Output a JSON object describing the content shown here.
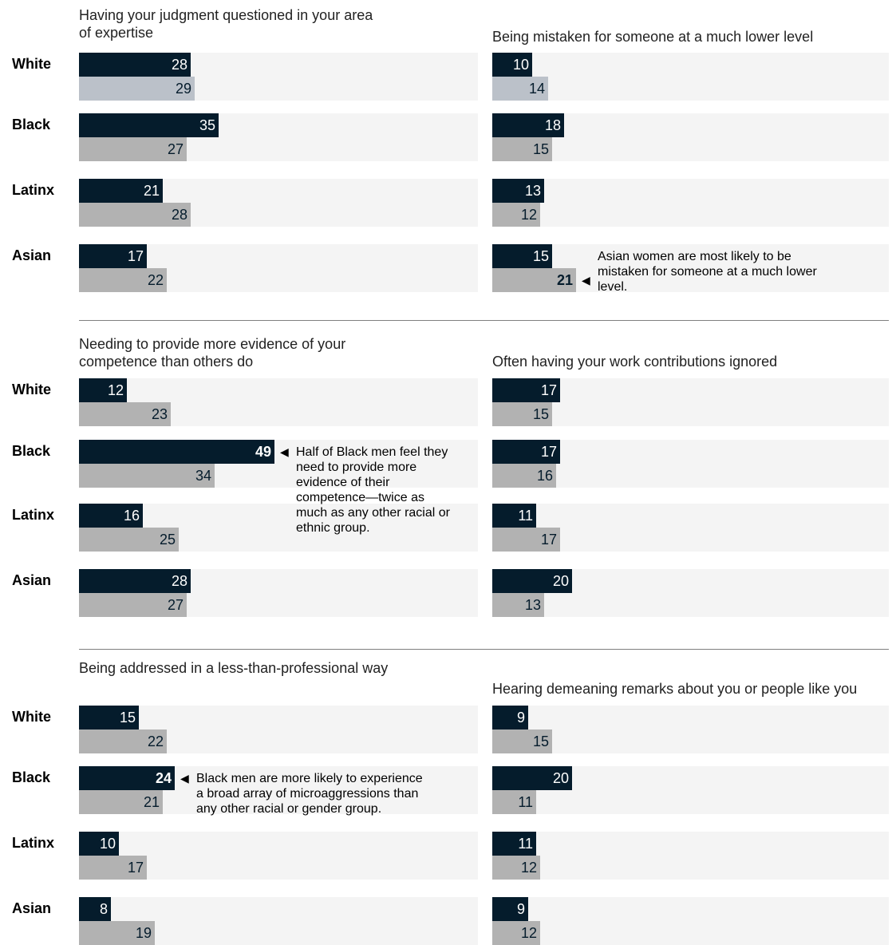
{
  "colors": {
    "men": "#051c2c",
    "women": "#b2b2b2",
    "track": "#f4f4f4"
  },
  "groups": [
    "White",
    "Black",
    "Latinx",
    "Asian"
  ],
  "chart_data": [
    {
      "type": "bar",
      "title": "Having your judgment questioned in your area of expertise",
      "categories": [
        "White",
        "Black",
        "Latinx",
        "Asian"
      ],
      "series": [
        {
          "values": [
            28,
            35,
            21,
            17
          ]
        },
        {
          "values": [
            29,
            27,
            28,
            22
          ]
        }
      ]
    },
    {
      "type": "bar",
      "title": "Being mistaken for someone at a much lower level",
      "categories": [
        "White",
        "Black",
        "Latinx",
        "Asian"
      ],
      "series": [
        {
          "values": [
            10,
            18,
            13,
            15
          ]
        },
        {
          "values": [
            14,
            15,
            12,
            21
          ]
        }
      ]
    },
    {
      "type": "bar",
      "title": "Needing to provide more evidence of your competence than others do",
      "categories": [
        "White",
        "Black",
        "Latinx",
        "Asian"
      ],
      "series": [
        {
          "values": [
            12,
            49,
            16,
            28
          ]
        },
        {
          "values": [
            23,
            34,
            25,
            27
          ]
        }
      ]
    },
    {
      "type": "bar",
      "title": "Often having your work contributions ignored",
      "categories": [
        "White",
        "Black",
        "Latinx",
        "Asian"
      ],
      "series": [
        {
          "values": [
            17,
            17,
            11,
            20
          ]
        },
        {
          "values": [
            15,
            16,
            17,
            13
          ]
        }
      ]
    },
    {
      "type": "bar",
      "title": "Being addressed in a less-than-professional way",
      "categories": [
        "White",
        "Black",
        "Latinx",
        "Asian"
      ],
      "series": [
        {
          "values": [
            15,
            24,
            10,
            8
          ]
        },
        {
          "values": [
            22,
            21,
            17,
            19
          ]
        }
      ]
    },
    {
      "type": "bar",
      "title": "Hearing demeaning remarks about you or people like you",
      "categories": [
        "White",
        "Black",
        "Latinx",
        "Asian"
      ],
      "series": [
        {
          "values": [
            9,
            20,
            11,
            9
          ]
        },
        {
          "values": [
            15,
            11,
            12,
            12
          ]
        }
      ]
    }
  ],
  "annotations": [
    {
      "chart": 1,
      "series": 1,
      "index": 3,
      "text": "Asian women are most likely to be mistaken for someone at a much lower level."
    },
    {
      "chart": 2,
      "series": 0,
      "index": 1,
      "text": "Half of Black men feel they need to provide more evidence of their competence—twice as much as any other racial or ethnic group."
    },
    {
      "chart": 4,
      "series": 0,
      "index": 1,
      "text": "Black men are more likely to experience a broad array of microaggressions than any other racial or gender group."
    }
  ]
}
